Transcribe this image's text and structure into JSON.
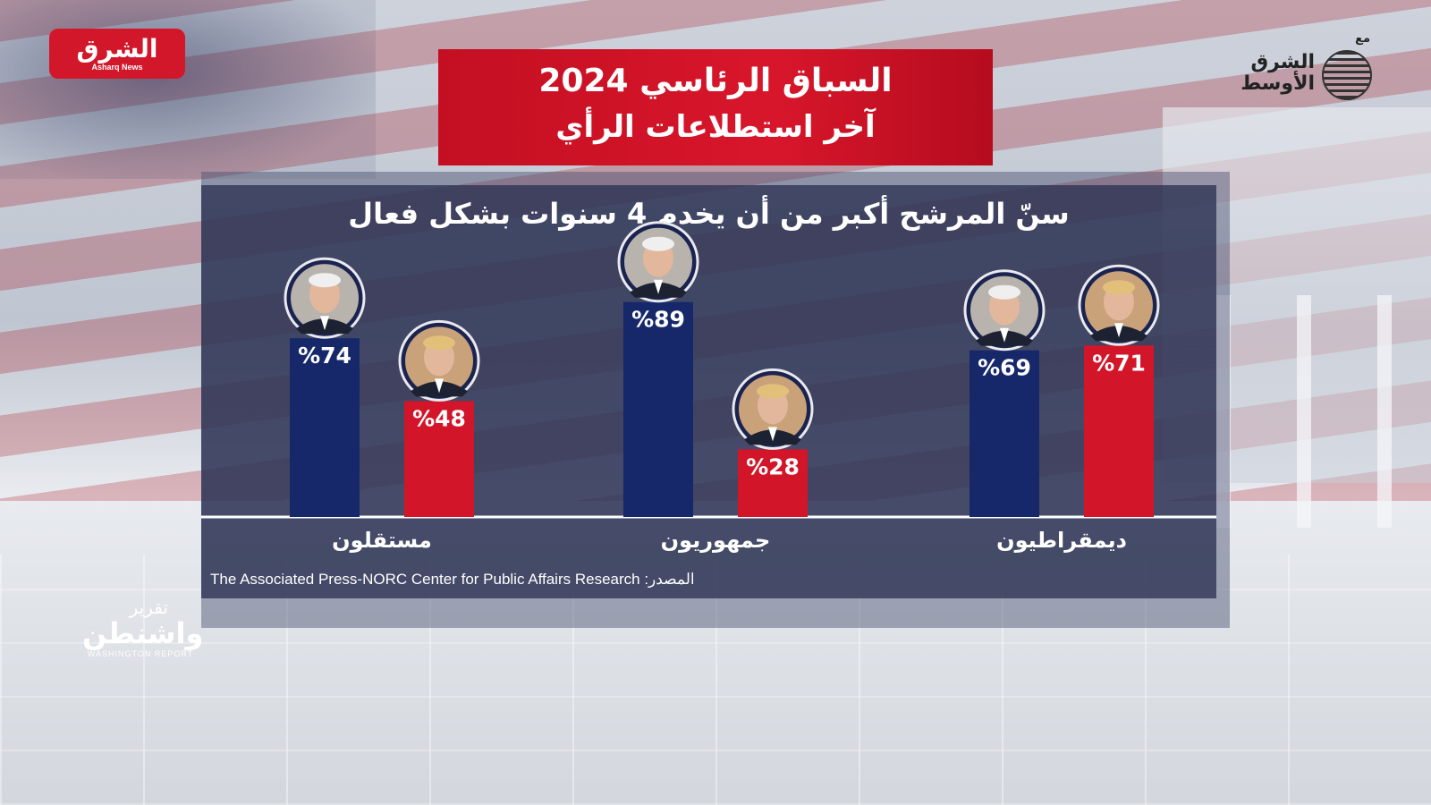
{
  "logo_left": {
    "arabic": "الشرق",
    "english": "Asharq News"
  },
  "logo_right": {
    "with": "مع",
    "name": "الشرق الأوسط"
  },
  "header": {
    "line1": "السباق الرئاسي 2024",
    "line2": "آخر استطلاعات الرأي"
  },
  "chart_data": {
    "type": "bar",
    "title": "سنّ المرشح أكبر من أن يخدم 4 سنوات بشكل فعال",
    "categories": [
      "ديمقراطيون",
      "جمهوريون",
      "مستقلون"
    ],
    "series": [
      {
        "candidate": "trump",
        "values": [
          71,
          28,
          48
        ],
        "labels": [
          "%71",
          "%28",
          "%48"
        ],
        "color": "#d3152a"
      },
      {
        "candidate": "biden",
        "values": [
          69,
          89,
          74
        ],
        "labels": [
          "%69",
          "%89",
          "%74"
        ],
        "color": "#16286a"
      }
    ],
    "ylim": [
      0,
      100
    ]
  },
  "source": "The Associated Press-NORC Center for Public Affairs Research :المصدر",
  "show_logo": {
    "line1": "تقرير",
    "line2": "واشنطن",
    "line3": "WASHINGTON REPORT"
  }
}
